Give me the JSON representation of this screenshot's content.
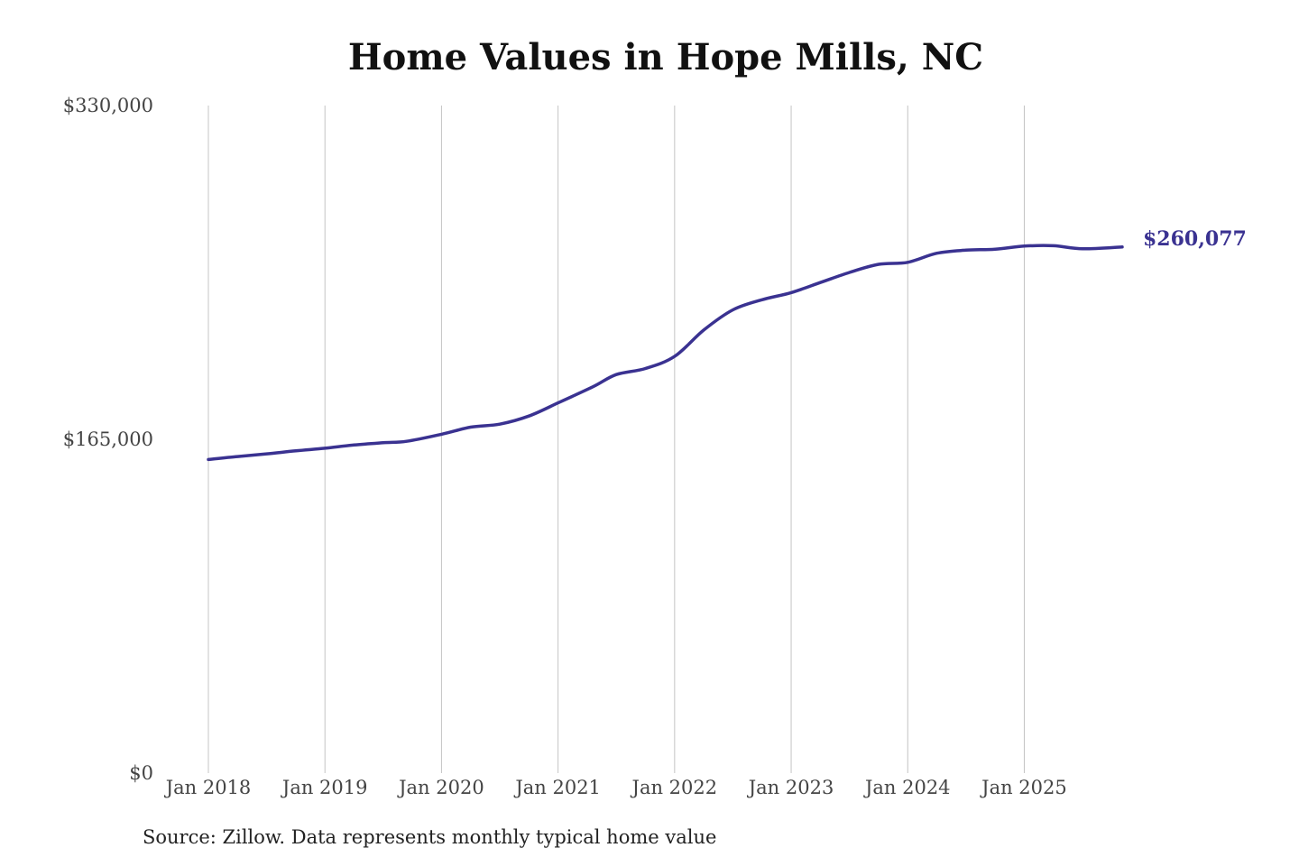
{
  "chart_data": {
    "type": "line",
    "title": "Home Values in Hope Mills, NC",
    "xlabel": "",
    "ylabel": "",
    "source": "Source: Zillow. Data represents monthly typical home value",
    "x_ticks": [
      {
        "label": "Jan 2018",
        "value": 2018.0
      },
      {
        "label": "Jan 2019",
        "value": 2019.0
      },
      {
        "label": "Jan 2020",
        "value": 2020.0
      },
      {
        "label": "Jan 2021",
        "value": 2021.0
      },
      {
        "label": "Jan 2022",
        "value": 2022.0
      },
      {
        "label": "Jan 2023",
        "value": 2023.0
      },
      {
        "label": "Jan 2024",
        "value": 2024.0
      },
      {
        "label": "Jan 2025",
        "value": 2025.0
      }
    ],
    "y_ticks": [
      {
        "label": "$330,000",
        "value": 330000
      },
      {
        "label": "$165,000",
        "value": 165000
      },
      {
        "label": "$0",
        "value": 0
      }
    ],
    "xlim": [
      2018.0,
      2025.84
    ],
    "ylim": [
      0,
      330000
    ],
    "grid": {
      "vertical": true,
      "horizontal": false
    },
    "end_label": "$260,077",
    "colors": {
      "line": "#3a3291",
      "grid": "#c4c4c4"
    },
    "series": [
      {
        "values": [
          {
            "x": 2018.0,
            "y": 155000
          },
          {
            "x": 2018.25,
            "y": 156500
          },
          {
            "x": 2018.5,
            "y": 157800
          },
          {
            "x": 2018.75,
            "y": 159300
          },
          {
            "x": 2019.0,
            "y": 160600
          },
          {
            "x": 2019.25,
            "y": 162200
          },
          {
            "x": 2019.5,
            "y": 163300
          },
          {
            "x": 2019.7,
            "y": 164000
          },
          {
            "x": 2020.0,
            "y": 167500
          },
          {
            "x": 2020.25,
            "y": 171000
          },
          {
            "x": 2020.5,
            "y": 172500
          },
          {
            "x": 2020.75,
            "y": 176500
          },
          {
            "x": 2021.0,
            "y": 183000
          },
          {
            "x": 2021.3,
            "y": 191000
          },
          {
            "x": 2021.5,
            "y": 197000
          },
          {
            "x": 2021.75,
            "y": 200000
          },
          {
            "x": 2022.0,
            "y": 206000
          },
          {
            "x": 2022.25,
            "y": 219000
          },
          {
            "x": 2022.5,
            "y": 229000
          },
          {
            "x": 2022.75,
            "y": 234000
          },
          {
            "x": 2023.0,
            "y": 237500
          },
          {
            "x": 2023.25,
            "y": 242500
          },
          {
            "x": 2023.5,
            "y": 247500
          },
          {
            "x": 2023.75,
            "y": 251500
          },
          {
            "x": 2024.0,
            "y": 252500
          },
          {
            "x": 2024.25,
            "y": 257000
          },
          {
            "x": 2024.5,
            "y": 258500
          },
          {
            "x": 2024.75,
            "y": 259000
          },
          {
            "x": 2025.0,
            "y": 260500
          },
          {
            "x": 2025.25,
            "y": 260700
          },
          {
            "x": 2025.5,
            "y": 259200
          },
          {
            "x": 2025.84,
            "y": 260077
          }
        ]
      }
    ]
  }
}
